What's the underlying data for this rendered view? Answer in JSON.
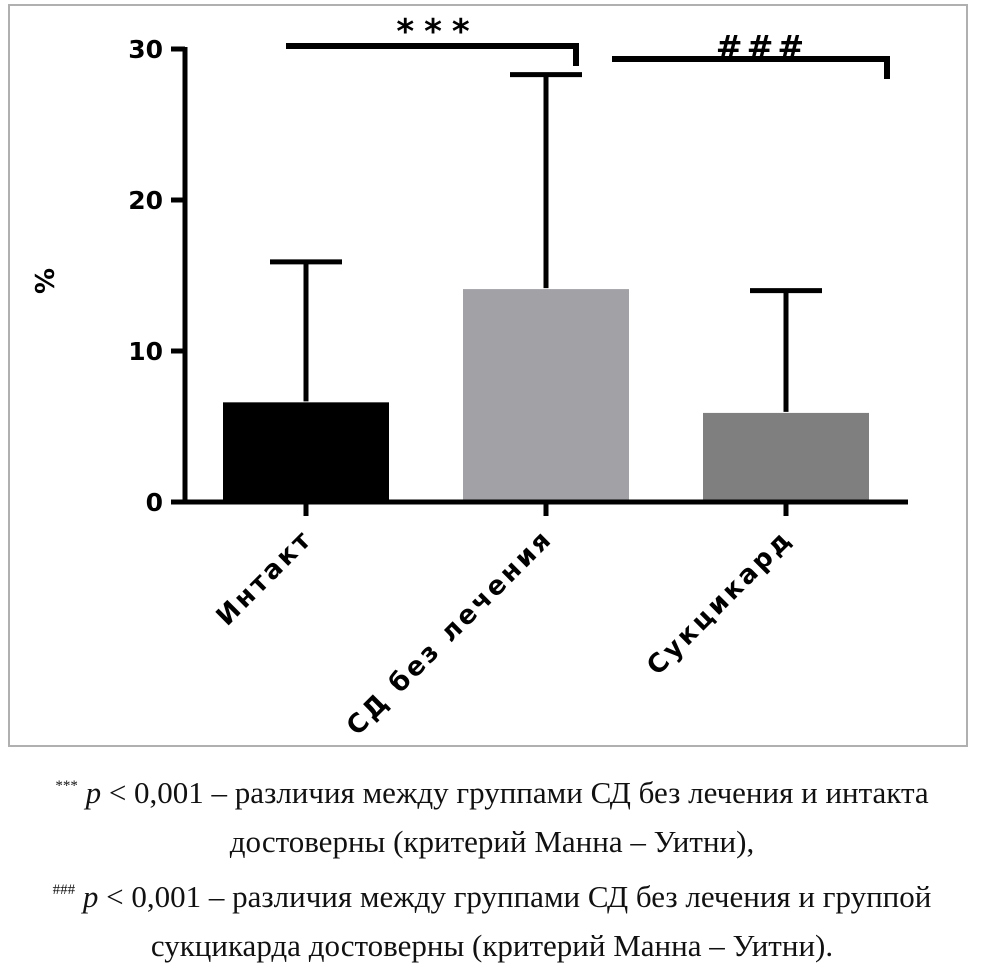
{
  "chart_data": {
    "type": "bar",
    "ylabel": "%",
    "ylim": [
      0,
      30
    ],
    "yticks": [
      "0",
      "10",
      "20",
      "30"
    ],
    "categories": [
      "Интакт",
      "СД без лечения",
      "Сукцикард"
    ],
    "values": [
      6.6,
      14.1,
      5.9
    ],
    "errors_upper": [
      15.9,
      28.3,
      14.0
    ],
    "bar_colors": [
      "#000000",
      "#a2a1a6",
      "#7f7f7f"
    ],
    "significance": [
      {
        "label": "***",
        "from": "Интакт",
        "to": "СД без лечения"
      },
      {
        "label": "###",
        "from": "СД без лечения",
        "to": "Сукцикард"
      }
    ]
  },
  "caption": {
    "line1_marker": "***",
    "line1_p": "p",
    "line1_text": "< 0,001 – различия между группами СД без лечения и интакта",
    "line2": "достоверны (критерий Манна – Уитни),",
    "line3_marker": "###",
    "line3_p": "p",
    "line3_text": "< 0,001 – различия между группами СД без лечения и группой",
    "line4": "сукцикарда достоверны (критерий Манна – Уитни)."
  }
}
